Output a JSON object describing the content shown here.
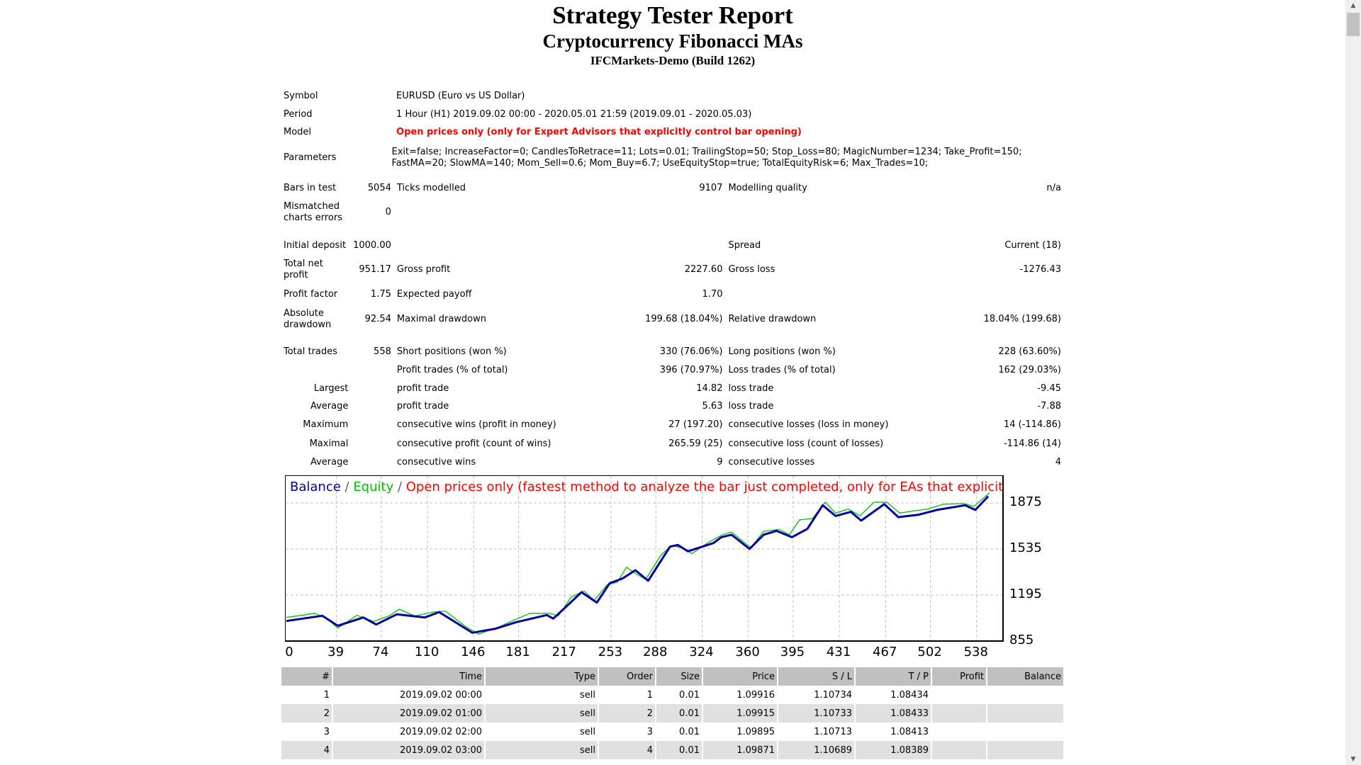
{
  "header": {
    "title": "Strategy Tester Report",
    "subtitle": "Cryptocurrency Fibonacci MAs",
    "server": "IFCMarkets-Demo (Build 1262)"
  },
  "summary": {
    "symbol": {
      "label": "Symbol",
      "value": "EURUSD (Euro vs US Dollar)"
    },
    "period": {
      "label": "Period",
      "value": "1 Hour (H1) 2019.09.02 00:00 - 2020.05.01 21:59 (2019.09.01 - 2020.05.03)"
    },
    "model": {
      "label": "Model",
      "value": "Open prices only (only for Expert Advisors that explicitly control bar opening)"
    },
    "parameters": {
      "label": "Parameters",
      "value": "Exit=false; IncreaseFactor=0; CandlesToRetrace=11; Lots=0.01; TrailingStop=50; Stop_Loss=80; MagicNumber=1234; Take_Profit=150;\nFastMA=20; SlowMA=140; Mom_Sell=0.6; Mom_Buy=6.7; UseEquityStop=true; TotalEquityRisk=6; Max_Trades=10;"
    },
    "rows": [
      [
        "Bars in test",
        "5054",
        "Ticks modelled",
        "9107",
        "Modelling quality",
        "n/a"
      ],
      [
        "Mismatched\ncharts errors",
        "0",
        "",
        "",
        "",
        ""
      ],
      [
        "Initial deposit",
        "1000.00",
        "",
        "",
        "Spread",
        "Current (18)"
      ],
      [
        "Total net\nprofit",
        "951.17",
        "Gross profit",
        "2227.60",
        "Gross loss",
        "-1276.43"
      ],
      [
        "Profit factor",
        "1.75",
        "Expected payoff",
        "1.70",
        "",
        ""
      ],
      [
        "Absolute\ndrawdown",
        "92.54",
        "Maximal drawdown",
        "199.68 (18.04%)",
        "Relative drawdown",
        "18.04% (199.68)"
      ],
      [
        "Total trades",
        "558",
        "Short positions (won %)",
        "330 (76.06%)",
        "Long positions (won %)",
        "228 (63.60%)"
      ],
      [
        "",
        "",
        "Profit trades (% of total)",
        "396 (70.97%)",
        "Loss trades (% of total)",
        "162 (29.03%)"
      ],
      [
        "Largest",
        "",
        "profit trade",
        "14.82",
        "loss trade",
        "-9.45"
      ],
      [
        "Average",
        "",
        "profit trade",
        "5.63",
        "loss trade",
        "-7.88"
      ],
      [
        "Maximum",
        "",
        "consecutive wins (profit in money)",
        "27 (197.20)",
        "consecutive losses (loss in money)",
        "14 (-114.86)"
      ],
      [
        "Maximal",
        "",
        "consecutive profit (count of wins)",
        "265.59 (25)",
        "consecutive loss (count of losses)",
        "-114.86 (14)"
      ],
      [
        "Average",
        "",
        "consecutive wins",
        "9",
        "consecutive losses",
        "4"
      ]
    ]
  },
  "chart_data": {
    "type": "line",
    "legend": {
      "balance": "Balance",
      "sep1": " / ",
      "equity": "Equity",
      "sep2": " / ",
      "model_note": "Open prices only (fastest method to analyze the bar just completed, only for EAs that explicitly control bar opening)"
    },
    "colors": {
      "balance": "#0000a0",
      "equity": "#00c000",
      "note": "#ff0000",
      "grid": "#c0c0c0"
    },
    "x_ticks": [
      0,
      39,
      74,
      110,
      146,
      181,
      217,
      253,
      288,
      324,
      360,
      395,
      431,
      467,
      502,
      538
    ],
    "y_ticks": [
      1875,
      1535,
      1195,
      855
    ],
    "xlim": [
      0,
      558
    ],
    "ylim": [
      855,
      2084
    ],
    "grid": true,
    "series": [
      {
        "name": "Balance",
        "points": [
          [
            0,
            1003
          ],
          [
            28,
            1042
          ],
          [
            40,
            968
          ],
          [
            60,
            1029
          ],
          [
            70,
            977
          ],
          [
            86,
            1052
          ],
          [
            108,
            1029
          ],
          [
            119,
            1069
          ],
          [
            145,
            916
          ],
          [
            163,
            946
          ],
          [
            179,
            994
          ],
          [
            203,
            1047
          ],
          [
            208,
            1021
          ],
          [
            218,
            1108
          ],
          [
            230,
            1216
          ],
          [
            242,
            1139
          ],
          [
            252,
            1282
          ],
          [
            262,
            1317
          ],
          [
            272,
            1378
          ],
          [
            282,
            1300
          ],
          [
            299,
            1552
          ],
          [
            305,
            1565
          ],
          [
            313,
            1518
          ],
          [
            333,
            1579
          ],
          [
            339,
            1622
          ],
          [
            347,
            1640
          ],
          [
            361,
            1535
          ],
          [
            372,
            1640
          ],
          [
            382,
            1669
          ],
          [
            394,
            1622
          ],
          [
            406,
            1683
          ],
          [
            418,
            1858
          ],
          [
            428,
            1779
          ],
          [
            440,
            1809
          ],
          [
            448,
            1744
          ],
          [
            466,
            1866
          ],
          [
            477,
            1770
          ],
          [
            493,
            1788
          ],
          [
            507,
            1823
          ],
          [
            529,
            1858
          ],
          [
            537,
            1823
          ],
          [
            547,
            1924
          ]
        ]
      },
      {
        "name": "Equity",
        "points": [
          [
            0,
            1030
          ],
          [
            12,
            1045
          ],
          [
            22,
            1060
          ],
          [
            32,
            1020
          ],
          [
            40,
            950
          ],
          [
            55,
            1045
          ],
          [
            68,
            1000
          ],
          [
            80,
            1040
          ],
          [
            88,
            1090
          ],
          [
            100,
            1040
          ],
          [
            115,
            1070
          ],
          [
            124,
            1075
          ],
          [
            140,
            960
          ],
          [
            150,
            905
          ],
          [
            158,
            935
          ],
          [
            166,
            960
          ],
          [
            175,
            1000
          ],
          [
            190,
            1060
          ],
          [
            205,
            1060
          ],
          [
            212,
            1040
          ],
          [
            222,
            1180
          ],
          [
            232,
            1225
          ],
          [
            240,
            1155
          ],
          [
            250,
            1270
          ],
          [
            258,
            1290
          ],
          [
            265,
            1400
          ],
          [
            272,
            1355
          ],
          [
            280,
            1310
          ],
          [
            292,
            1490
          ],
          [
            300,
            1560
          ],
          [
            310,
            1540
          ],
          [
            316,
            1500
          ],
          [
            330,
            1590
          ],
          [
            340,
            1640
          ],
          [
            347,
            1660
          ],
          [
            356,
            1590
          ],
          [
            362,
            1545
          ],
          [
            372,
            1665
          ],
          [
            384,
            1680
          ],
          [
            392,
            1640
          ],
          [
            400,
            1750
          ],
          [
            410,
            1760
          ],
          [
            420,
            1880
          ],
          [
            428,
            1800
          ],
          [
            438,
            1830
          ],
          [
            447,
            1780
          ],
          [
            458,
            1880
          ],
          [
            468,
            1880
          ],
          [
            478,
            1800
          ],
          [
            488,
            1815
          ],
          [
            500,
            1830
          ],
          [
            512,
            1865
          ],
          [
            528,
            1870
          ],
          [
            536,
            1850
          ],
          [
            548,
            1950
          ]
        ]
      }
    ]
  },
  "trades": {
    "columns": [
      "#",
      "Time",
      "Type",
      "Order",
      "Size",
      "Price",
      "S / L",
      "T / P",
      "Profit",
      "Balance"
    ],
    "rows": [
      [
        "1",
        "2019.09.02 00:00",
        "sell",
        "1",
        "0.01",
        "1.09916",
        "1.10734",
        "1.08434",
        "",
        ""
      ],
      [
        "2",
        "2019.09.02 01:00",
        "sell",
        "2",
        "0.01",
        "1.09915",
        "1.10733",
        "1.08433",
        "",
        ""
      ],
      [
        "3",
        "2019.09.02 02:00",
        "sell",
        "3",
        "0.01",
        "1.09895",
        "1.10713",
        "1.08413",
        "",
        ""
      ],
      [
        "4",
        "2019.09.02 03:00",
        "sell",
        "4",
        "0.01",
        "1.09871",
        "1.10689",
        "1.08389",
        "",
        ""
      ]
    ]
  },
  "scrollbar": {
    "up_icon": "triangle-up",
    "down_icon": "triangle-down",
    "position": 0
  }
}
